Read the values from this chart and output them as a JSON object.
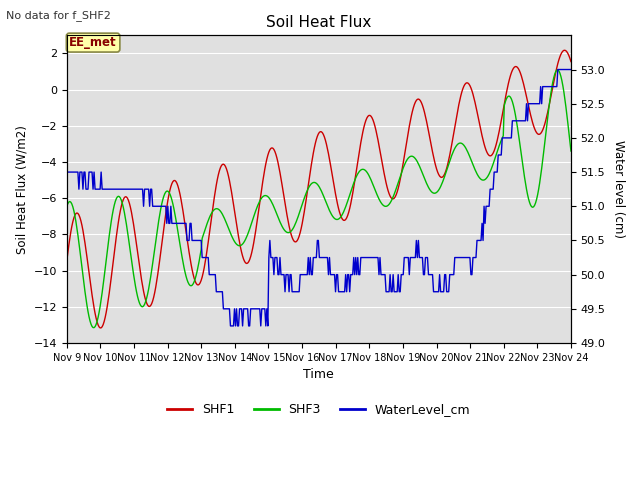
{
  "title": "Soil Heat Flux",
  "note": "No data for f_SHF2",
  "annotation": "EE_met",
  "xlabel": "Time",
  "ylabel_left": "Soil Heat Flux (W/m2)",
  "ylabel_right": "Water level (cm)",
  "ylim_left": [
    -14,
    3
  ],
  "ylim_right": [
    49.0,
    53.5
  ],
  "yticks_left": [
    -14,
    -12,
    -10,
    -8,
    -6,
    -4,
    -2,
    0,
    2
  ],
  "yticks_right": [
    49.0,
    49.5,
    50.0,
    50.5,
    51.0,
    51.5,
    52.0,
    52.5,
    53.0
  ],
  "xtick_labels": [
    "Nov 9",
    "Nov 10",
    "Nov 11",
    "Nov 12",
    "Nov 13",
    "Nov 14",
    "Nov 15",
    "Nov 16",
    "Nov 17",
    "Nov 18",
    "Nov 19",
    "Nov 20",
    "Nov 21",
    "Nov 22",
    "Nov 23",
    "Nov 24"
  ],
  "plot_bg_color": "#e0e0e0",
  "grid_color": "#ffffff",
  "colors": {
    "SHF1": "#cc0000",
    "SHF3": "#00bb00",
    "WaterLevel": "#0000cc"
  },
  "figsize": [
    6.4,
    4.8
  ],
  "dpi": 100
}
